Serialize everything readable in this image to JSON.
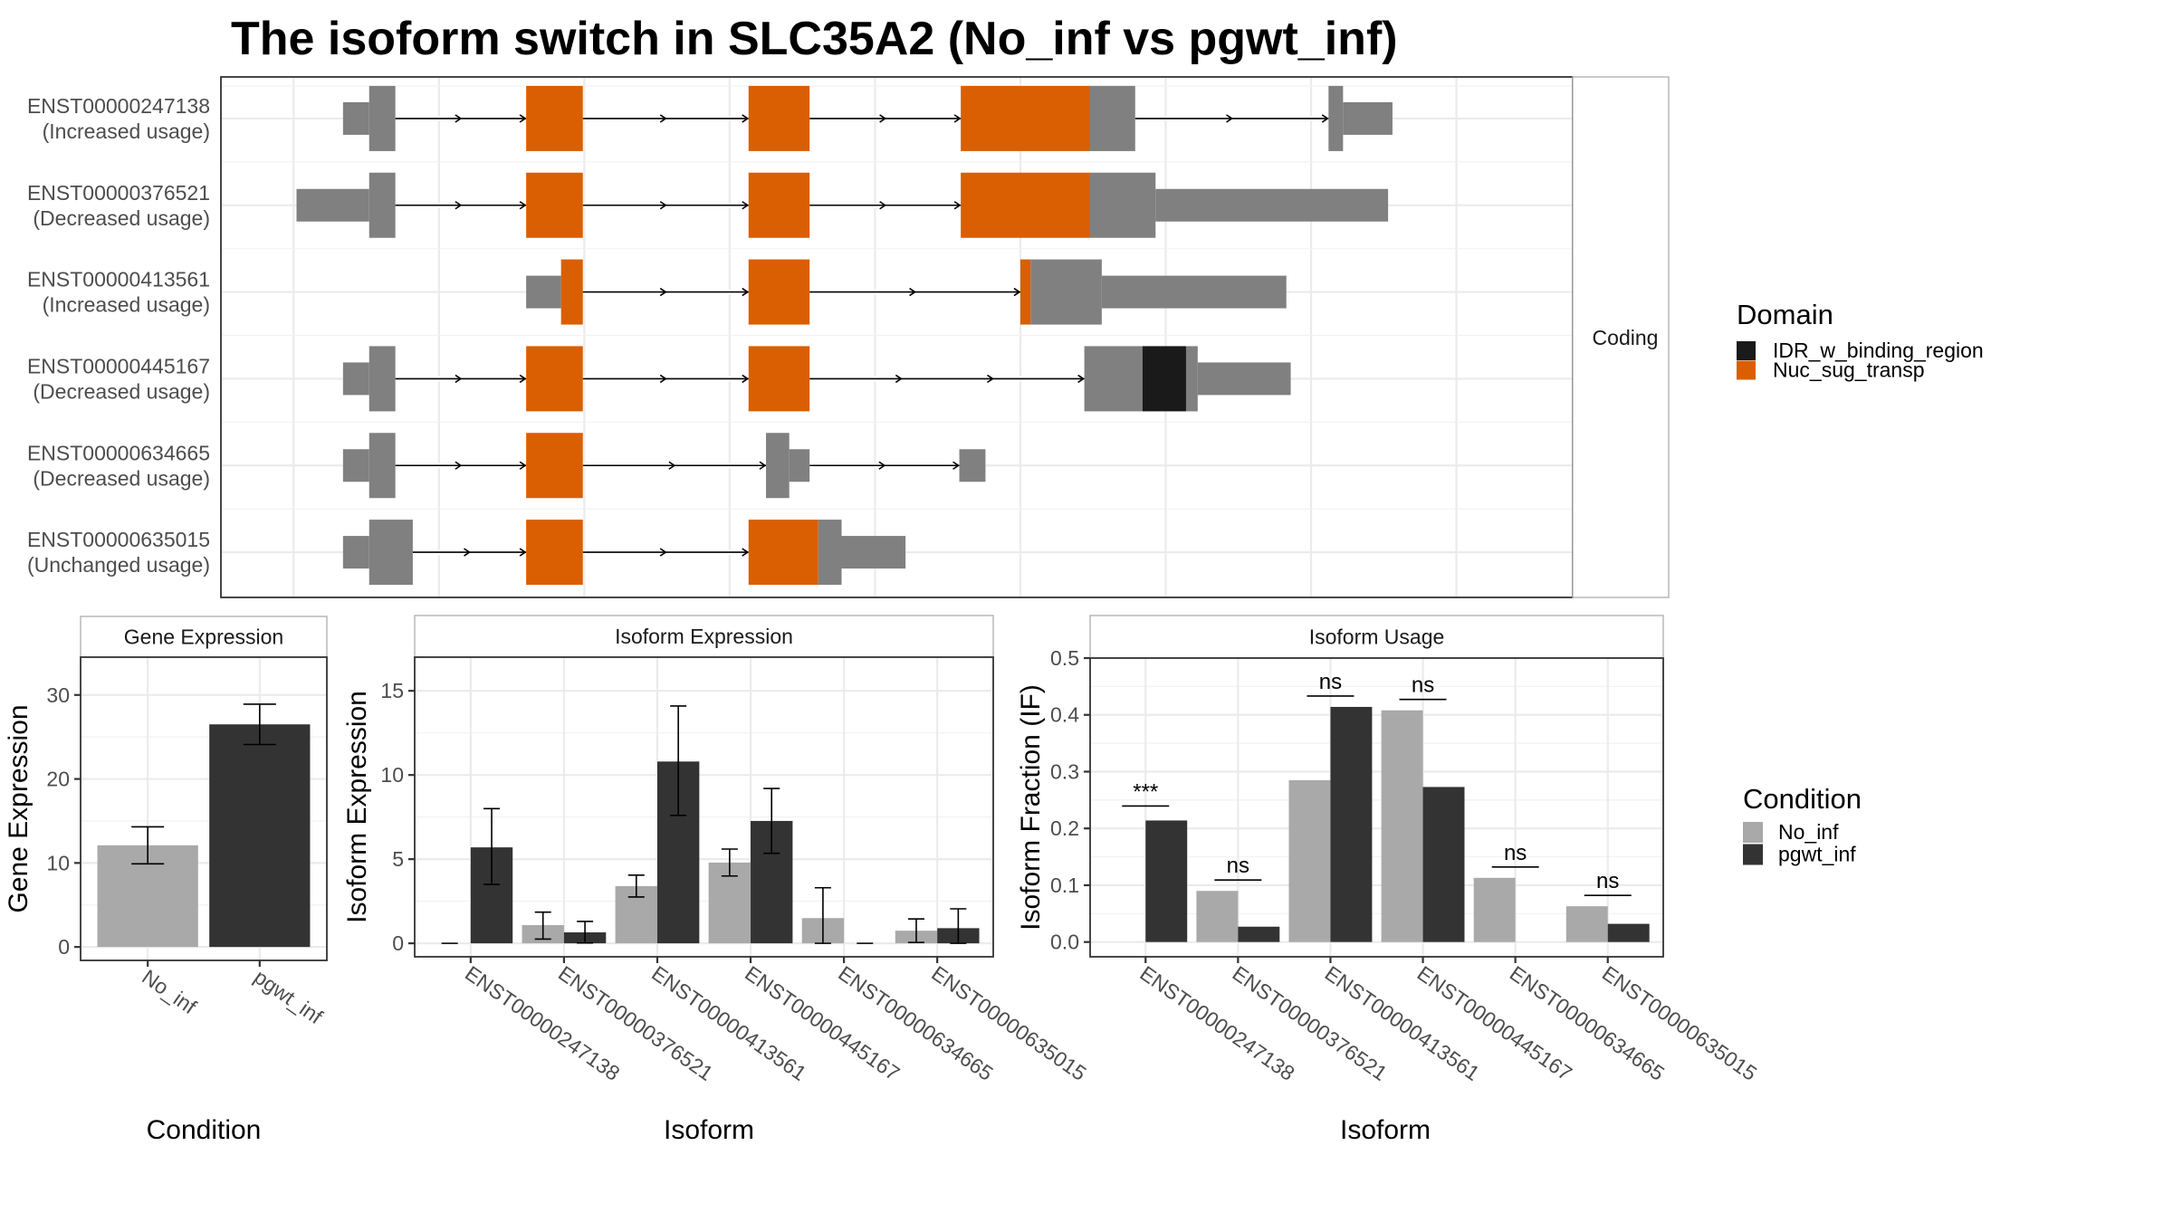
{
  "title": "The isoform switch in SLC35A2 (No_inf vs pgwt_inf)",
  "colors": {
    "Nuc_sug_transp": "#d95f02",
    "IDR_w_binding_region": "#1a1a1a",
    "utr_grey": "#808080",
    "No_inf": "#a9a9a9",
    "pgwt_inf": "#333333"
  },
  "chart_data": [
    {
      "type": "transcript-structure",
      "name": "transcript-structure",
      "facet_label": "Coding",
      "xlim": [
        -0.5,
        8.8
      ],
      "grid_x": [
        0,
        1,
        2,
        3,
        4,
        5,
        6,
        7,
        8
      ],
      "transcripts": [
        {
          "id": "ENST00000247138",
          "usage": "(Increased usage)",
          "segments": [
            {
              "start": 0.34,
              "end": 0.52,
              "type": "utr",
              "domain": null
            },
            {
              "start": 0.52,
              "end": 0.7,
              "type": "cds",
              "domain": null
            },
            {
              "start": 1.6,
              "end": 1.99,
              "type": "cds",
              "domain": "Nuc_sug_transp"
            },
            {
              "start": 3.13,
              "end": 3.55,
              "type": "cds",
              "domain": "Nuc_sug_transp"
            },
            {
              "start": 4.59,
              "end": 5.48,
              "type": "cds",
              "domain": "Nuc_sug_transp"
            },
            {
              "start": 5.48,
              "end": 5.79,
              "type": "cds",
              "domain": null
            },
            {
              "start": 7.12,
              "end": 7.22,
              "type": "cds",
              "domain": null
            },
            {
              "start": 7.22,
              "end": 7.56,
              "type": "utr",
              "domain": null
            }
          ],
          "introns": [
            [
              0.7,
              1.6
            ],
            [
              1.99,
              3.13
            ],
            [
              3.55,
              4.59
            ],
            [
              5.79,
              7.12
            ]
          ]
        },
        {
          "id": "ENST00000376521",
          "usage": "(Decreased usage)",
          "segments": [
            {
              "start": 0.02,
              "end": 0.52,
              "type": "utr",
              "domain": null
            },
            {
              "start": 0.52,
              "end": 0.7,
              "type": "cds",
              "domain": null
            },
            {
              "start": 1.6,
              "end": 1.99,
              "type": "cds",
              "domain": "Nuc_sug_transp"
            },
            {
              "start": 3.13,
              "end": 3.55,
              "type": "cds",
              "domain": "Nuc_sug_transp"
            },
            {
              "start": 4.59,
              "end": 5.48,
              "type": "cds",
              "domain": "Nuc_sug_transp"
            },
            {
              "start": 5.48,
              "end": 5.93,
              "type": "cds",
              "domain": null
            },
            {
              "start": 5.93,
              "end": 7.53,
              "type": "utr",
              "domain": null
            }
          ],
          "introns": [
            [
              0.7,
              1.6
            ],
            [
              1.99,
              3.13
            ],
            [
              3.55,
              4.59
            ]
          ]
        },
        {
          "id": "ENST00000413561",
          "usage": "(Increased usage)",
          "segments": [
            {
              "start": 1.6,
              "end": 1.84,
              "type": "utr",
              "domain": null
            },
            {
              "start": 1.84,
              "end": 1.99,
              "type": "cds",
              "domain": "Nuc_sug_transp"
            },
            {
              "start": 3.13,
              "end": 3.55,
              "type": "cds",
              "domain": "Nuc_sug_transp"
            },
            {
              "start": 5.0,
              "end": 5.07,
              "type": "cds",
              "domain": "Nuc_sug_transp"
            },
            {
              "start": 5.07,
              "end": 5.56,
              "type": "cds",
              "domain": null
            },
            {
              "start": 5.56,
              "end": 6.83,
              "type": "utr",
              "domain": null
            }
          ],
          "introns": [
            [
              1.99,
              3.13
            ],
            [
              3.55,
              5.0
            ]
          ]
        },
        {
          "id": "ENST00000445167",
          "usage": "(Decreased usage)",
          "segments": [
            {
              "start": 0.34,
              "end": 0.52,
              "type": "utr",
              "domain": null
            },
            {
              "start": 0.52,
              "end": 0.7,
              "type": "cds",
              "domain": null
            },
            {
              "start": 1.6,
              "end": 1.99,
              "type": "cds",
              "domain": "Nuc_sug_transp"
            },
            {
              "start": 3.13,
              "end": 3.55,
              "type": "cds",
              "domain": "Nuc_sug_transp"
            },
            {
              "start": 5.44,
              "end": 5.84,
              "type": "cds",
              "domain": null
            },
            {
              "start": 5.84,
              "end": 6.14,
              "type": "cds",
              "domain": "IDR_w_binding_region"
            },
            {
              "start": 6.14,
              "end": 6.22,
              "type": "cds",
              "domain": null
            },
            {
              "start": 6.22,
              "end": 6.86,
              "type": "utr",
              "domain": null
            }
          ],
          "introns": [
            [
              0.7,
              1.6
            ],
            [
              1.99,
              3.13
            ],
            [
              3.55,
              5.44
            ]
          ]
        },
        {
          "id": "ENST00000634665",
          "usage": "(Decreased usage)",
          "segments": [
            {
              "start": 0.34,
              "end": 0.52,
              "type": "utr",
              "domain": null
            },
            {
              "start": 0.52,
              "end": 0.7,
              "type": "cds",
              "domain": null
            },
            {
              "start": 1.6,
              "end": 1.99,
              "type": "cds",
              "domain": "Nuc_sug_transp"
            },
            {
              "start": 3.25,
              "end": 3.41,
              "type": "cds",
              "domain": null
            },
            {
              "start": 3.41,
              "end": 3.55,
              "type": "utr",
              "domain": null
            },
            {
              "start": 4.58,
              "end": 4.76,
              "type": "utr",
              "domain": null
            }
          ],
          "introns": [
            [
              0.7,
              1.6
            ],
            [
              1.99,
              3.25
            ],
            [
              3.55,
              4.58
            ]
          ]
        },
        {
          "id": "ENST00000635015",
          "usage": "(Unchanged usage)",
          "segments": [
            {
              "start": 0.34,
              "end": 0.52,
              "type": "utr",
              "domain": null
            },
            {
              "start": 0.52,
              "end": 0.82,
              "type": "cds",
              "domain": null
            },
            {
              "start": 1.6,
              "end": 1.99,
              "type": "cds",
              "domain": "Nuc_sug_transp"
            },
            {
              "start": 3.13,
              "end": 3.61,
              "type": "cds",
              "domain": "Nuc_sug_transp"
            },
            {
              "start": 3.61,
              "end": 3.77,
              "type": "cds",
              "domain": null
            },
            {
              "start": 3.77,
              "end": 4.21,
              "type": "utr",
              "domain": null
            }
          ],
          "introns": [
            [
              0.82,
              1.6
            ],
            [
              1.99,
              3.13
            ]
          ]
        }
      ],
      "legend": {
        "title": "Domain",
        "position": "right",
        "entries": [
          {
            "label": "IDR_w_binding_region",
            "key": "IDR_w_binding_region"
          },
          {
            "label": "Nuc_sug_transp",
            "key": "Nuc_sug_transp"
          }
        ]
      }
    },
    {
      "type": "bar",
      "name": "gene-expression",
      "title": "Gene Expression",
      "xlabel": "Condition",
      "ylabel": "Gene Expression",
      "ylim": [
        -1.6,
        34.5
      ],
      "yticks": [
        0,
        10,
        20,
        30
      ],
      "categories": [
        "No_inf",
        "pgwt_inf"
      ],
      "values": [
        12.1,
        26.5
      ],
      "errors": [
        [
          9.9,
          14.3
        ],
        [
          24.1,
          28.9
        ]
      ],
      "grid": true
    },
    {
      "type": "bar",
      "name": "isoform-expression",
      "title": "Isoform Expression",
      "xlabel": "Isoform",
      "ylabel": "Isoform Expression",
      "ylim": [
        -0.8,
        17.0
      ],
      "yticks": [
        0,
        5,
        10,
        15
      ],
      "categories": [
        "ENST00000247138",
        "ENST00000376521",
        "ENST00000413561",
        "ENST00000445167",
        "ENST00000634665",
        "ENST00000635015"
      ],
      "series": [
        {
          "name": "No_inf",
          "values": [
            0.0,
            1.08,
            3.4,
            4.8,
            1.5,
            0.75
          ],
          "errors": [
            [
              0.0,
              0.0
            ],
            [
              0.25,
              1.85
            ],
            [
              2.75,
              4.05
            ],
            [
              4.0,
              5.6
            ],
            [
              0.0,
              3.3
            ],
            [
              0.05,
              1.45
            ]
          ]
        },
        {
          "name": "pgwt_inf",
          "values": [
            5.7,
            0.65,
            10.8,
            7.27,
            0.0,
            0.9
          ],
          "errors": [
            [
              3.5,
              8.0
            ],
            [
              0.02,
              1.3
            ],
            [
              7.6,
              14.1
            ],
            [
              5.35,
              9.2
            ],
            [
              0.0,
              0.0
            ],
            [
              0.0,
              2.05
            ]
          ]
        }
      ],
      "grid": true
    },
    {
      "type": "bar",
      "name": "isoform-usage",
      "title": "Isoform Usage",
      "xlabel": "Isoform",
      "ylabel": "Isoform Fraction (IF)",
      "ylim": [
        -0.026,
        0.5
      ],
      "yticks": [
        0.0,
        0.1,
        0.2,
        0.3,
        0.4,
        0.5
      ],
      "ytick_labels": [
        "0.0",
        "0.1",
        "0.2",
        "0.3",
        "0.4",
        "0.5"
      ],
      "categories": [
        "ENST00000247138",
        "ENST00000376521",
        "ENST00000413561",
        "ENST00000445167",
        "ENST00000634665",
        "ENST00000635015"
      ],
      "series": [
        {
          "name": "No_inf",
          "values": [
            0.0,
            0.09,
            0.285,
            0.408,
            0.113,
            0.063
          ]
        },
        {
          "name": "pgwt_inf",
          "values": [
            0.214,
            0.027,
            0.414,
            0.273,
            0.0,
            0.032
          ]
        }
      ],
      "significance": [
        "***",
        "ns",
        "ns",
        "ns",
        "ns",
        "ns"
      ],
      "grid": true
    }
  ],
  "condition_legend": {
    "title": "Condition",
    "position": "right",
    "entries": [
      {
        "label": "No_inf",
        "key": "No_inf"
      },
      {
        "label": "pgwt_inf",
        "key": "pgwt_inf"
      }
    ]
  }
}
